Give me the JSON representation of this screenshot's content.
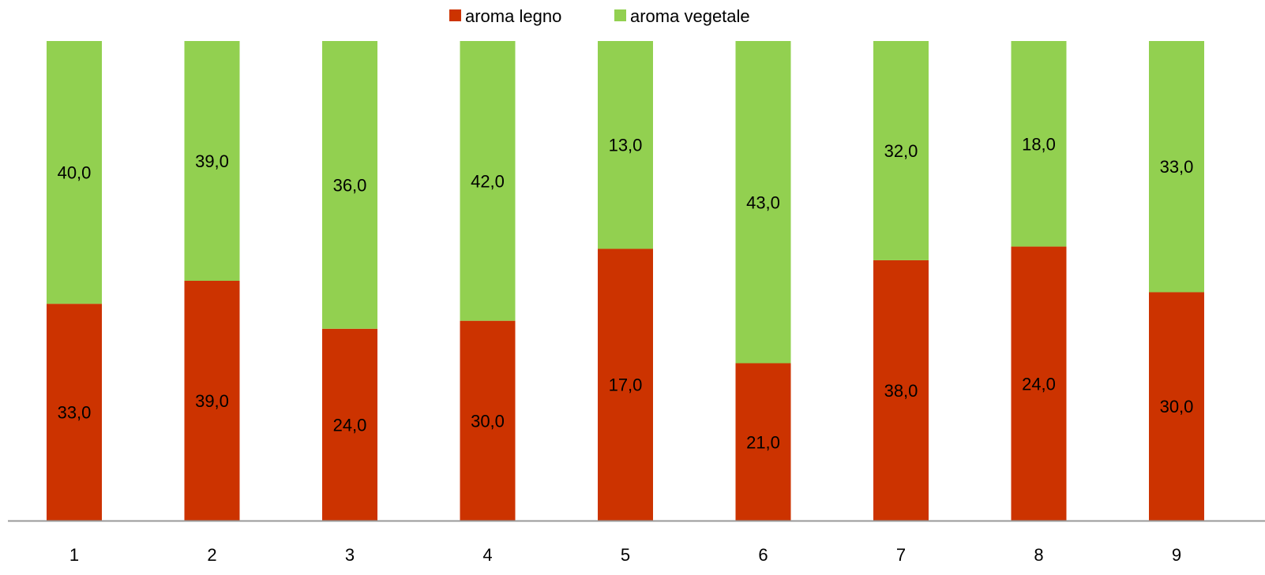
{
  "chart_data": {
    "type": "bar",
    "stacked": true,
    "normalized_100_percent": true,
    "categories": [
      "1",
      "2",
      "3",
      "4",
      "5",
      "6",
      "7",
      "8",
      "9"
    ],
    "series": [
      {
        "name": "aroma legno",
        "color": "#cc3300",
        "values": [
          33.0,
          39.0,
          24.0,
          30.0,
          17.0,
          21.0,
          38.0,
          24.0,
          30.0
        ],
        "labels": [
          "33,0",
          "39,0",
          "24,0",
          "30,0",
          "17,0",
          "21,0",
          "38,0",
          "24,0",
          "30,0"
        ]
      },
      {
        "name": "aroma vegetale",
        "color": "#92d050",
        "values": [
          40.0,
          39.0,
          36.0,
          42.0,
          13.0,
          43.0,
          32.0,
          18.0,
          33.0
        ],
        "labels": [
          "40,0",
          "39,0",
          "36,0",
          "42,0",
          "13,0",
          "43,0",
          "32,0",
          "18,0",
          "33,0"
        ]
      }
    ],
    "legend_position": "top-center",
    "grid": false,
    "y_axis_visible": false,
    "axis_color": "#999999"
  }
}
